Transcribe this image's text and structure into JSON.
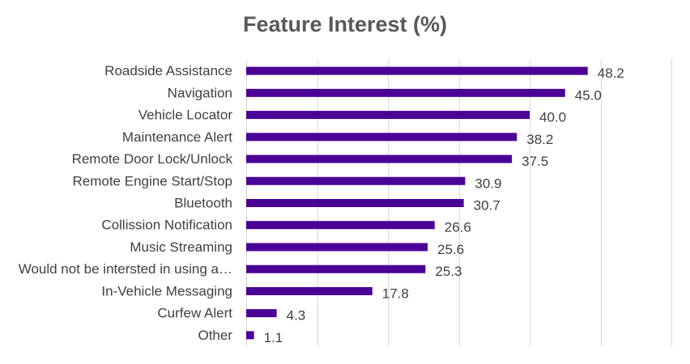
{
  "chart_data": {
    "type": "bar",
    "orientation": "horizontal",
    "title": "Feature Interest (%)",
    "xlabel": "",
    "ylabel": "",
    "xlim": [
      0,
      60
    ],
    "grid": true,
    "legend": "none",
    "bar_color": "#4b0096",
    "categories": [
      "Roadside Assistance",
      "Navigation",
      "Vehicle Locator",
      "Maintenance Alert",
      "Remote Door Lock/Unlock",
      "Remote Engine Start/Stop",
      "Bluetooth",
      "Collission Notification",
      "Music Streaming",
      "Would not be intersted in using a…",
      "In-Vehicle Messaging",
      "Curfew Alert",
      "Other"
    ],
    "values": [
      48.2,
      45.0,
      40.0,
      38.2,
      37.5,
      30.9,
      30.7,
      26.6,
      25.6,
      25.3,
      17.8,
      4.3,
      1.1
    ],
    "data_labels": [
      "48.2",
      "45.0",
      "40.0",
      "38.2",
      "37.5",
      "30.9",
      "30.7",
      "26.6",
      "25.6",
      "25.3",
      "17.8",
      "4.3",
      "1.1"
    ]
  }
}
